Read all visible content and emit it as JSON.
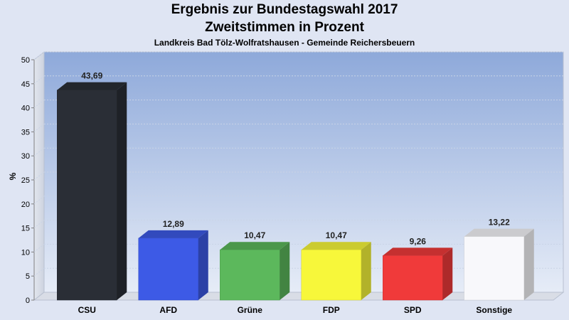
{
  "chart_data": {
    "type": "bar",
    "title": "Ergebnis zur Bundestagswahl 2017",
    "subtitle": "Zweitstimmen in Prozent",
    "caption": "Landkreis Bad Tölz-Wolfratshausen - Gemeinde Reichersbeuern",
    "ylabel": "%",
    "xlabel": "",
    "ylim": [
      0,
      50
    ],
    "yticks": [
      0,
      5,
      10,
      15,
      20,
      25,
      30,
      35,
      40,
      45,
      50
    ],
    "categories": [
      "CSU",
      "AFD",
      "Grüne",
      "FDP",
      "SPD",
      "Sonstige"
    ],
    "values": [
      43.69,
      12.89,
      10.47,
      10.47,
      9.26,
      13.22
    ],
    "labels": [
      "43,69",
      "12,89",
      "10,47",
      "10,47",
      "9,26",
      "13,22"
    ],
    "colors": [
      "#2a2e36",
      "#3d5ae6",
      "#5cb85c",
      "#f7f73a",
      "#f03a3a",
      "#f8f8fb"
    ],
    "grid": true
  }
}
